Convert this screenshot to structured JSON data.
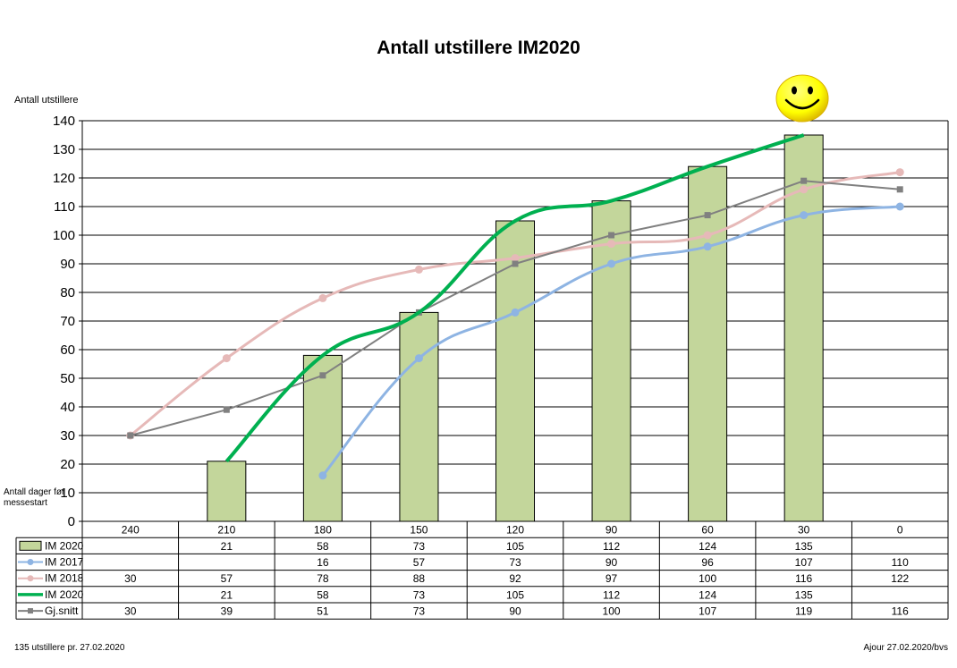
{
  "chart_data": {
    "type": "bar",
    "title": "Antall utstillere IM2020",
    "ylabel": "Antall utstillere",
    "xlabel": "Antall dager før messestart",
    "ylim": [
      0,
      140
    ],
    "yticks": [
      0,
      10,
      20,
      30,
      40,
      50,
      60,
      70,
      80,
      90,
      100,
      110,
      120,
      130,
      140
    ],
    "grid": true,
    "categories": [
      "240",
      "210",
      "180",
      "150",
      "120",
      "90",
      "60",
      "30",
      "0"
    ],
    "series": [
      {
        "name": "IM 2020",
        "kind": "bar",
        "color": "#c3d69b",
        "values": [
          null,
          21,
          58,
          73,
          105,
          112,
          124,
          135,
          null
        ]
      },
      {
        "name": "IM 2017",
        "kind": "line",
        "marker": "circle",
        "color": "#8eb4e3",
        "values": [
          null,
          null,
          16,
          57,
          73,
          90,
          96,
          107,
          110
        ]
      },
      {
        "name": "IM 2018",
        "kind": "line",
        "marker": "circle",
        "color": "#e6b9b8",
        "values": [
          30,
          57,
          78,
          88,
          92,
          97,
          100,
          116,
          122
        ]
      },
      {
        "name": "IM 2020",
        "kind": "line",
        "marker": "none",
        "color": "#00b050",
        "values": [
          null,
          21,
          58,
          73,
          105,
          112,
          124,
          135,
          null
        ]
      },
      {
        "name": "Gj.snitt",
        "kind": "line",
        "marker": "square",
        "color": "#808080",
        "values": [
          30,
          39,
          51,
          73,
          90,
          100,
          107,
          119,
          116
        ]
      }
    ],
    "legend": "data-table-below"
  },
  "footer": {
    "left": "135 utstillere pr. 27.02.2020",
    "right": "Ajour  27.02.2020/bvs"
  },
  "decoration": {
    "smiley_icon": "smiley-face-icon",
    "smiley_color": "#ffff00"
  }
}
